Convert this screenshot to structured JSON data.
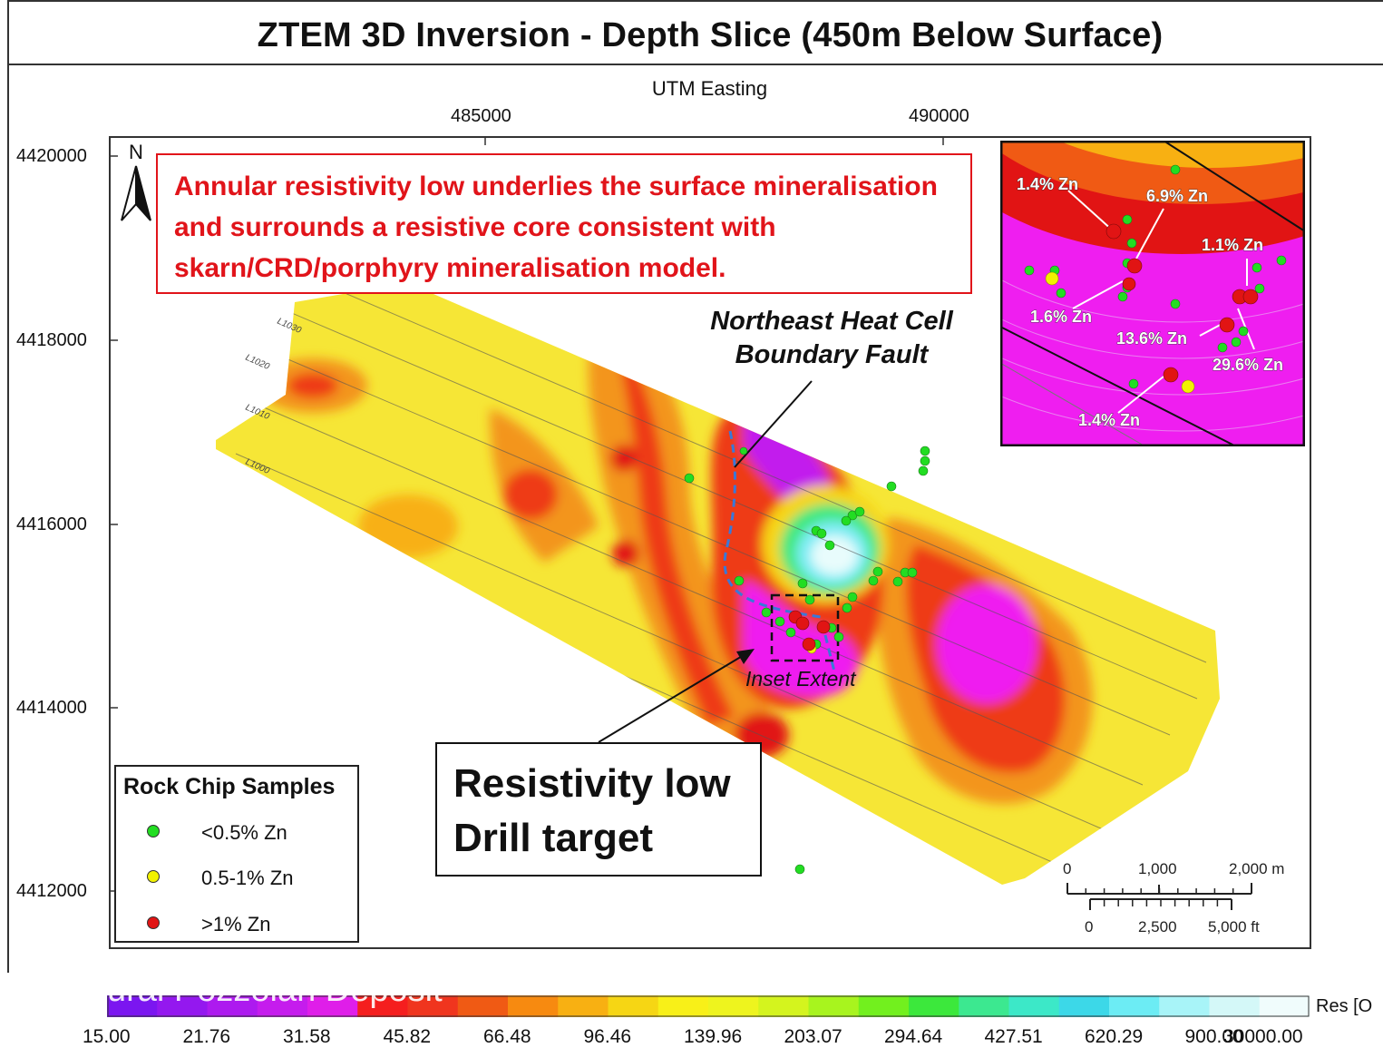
{
  "title": "ZTEM 3D Inversion - Depth Slice (450m Below Surface)",
  "axis": {
    "x_title": "UTM Easting",
    "x_ticks": [
      "485000",
      "490000"
    ],
    "y_ticks": [
      "4420000",
      "4418000",
      "4416000",
      "4414000",
      "4412000"
    ]
  },
  "north_label": "N",
  "callout": "Annular resistivity low underlies the surface mineralisation and surrounds a resistive core consistent with skarn/CRD/porphyry mineralisation model.",
  "fault_label": [
    "Northeast Heat Cell",
    "Boundary Fault"
  ],
  "inset_extent_label": "Inset Extent",
  "target": [
    "Resistivity low",
    "Drill target"
  ],
  "line_labels": [
    "L1030",
    "L1020",
    "L1010",
    "L1000"
  ],
  "legend": {
    "title": "Rock Chip Samples",
    "items": [
      {
        "label": "<0.5% Zn",
        "color": "#22dd22"
      },
      {
        "label": "0.5-1% Zn",
        "color": "#f2f200"
      },
      {
        "label": ">1% Zn",
        "color": "#e11414"
      }
    ]
  },
  "inset_labels": [
    "1.4% Zn",
    "6.9% Zn",
    "1.1% Zn",
    "1.6% Zn",
    "13.6% Zn",
    "29.6% Zn",
    "1.4% Zn"
  ],
  "scale_bar": {
    "metric": [
      "0",
      "1,000",
      "2,000 m"
    ],
    "imperial": [
      "0",
      "2,500",
      "5,000 ft"
    ]
  },
  "colorbar": {
    "partial_text": "ural Pozzolan Deposit",
    "unit_label": "Res [O",
    "labels": [
      "15.00",
      "21.76",
      "31.58",
      "45.82",
      "66.48",
      "96.46",
      "139.96",
      "203.07",
      "294.64",
      "427.51",
      "620.29",
      "900.00",
      "30000.00"
    ],
    "colors": [
      "#7b16f0",
      "#9418ef",
      "#ad1aef",
      "#c51ced",
      "#df1ee9",
      "#f51e1e",
      "#f0351e",
      "#f05a14",
      "#f78a10",
      "#f8b012",
      "#f6d614",
      "#f8f018",
      "#eef41e",
      "#d4f41e",
      "#a8f41e",
      "#72f01e",
      "#3ce83c",
      "#3ce890",
      "#3ce8c8",
      "#3cd8e8",
      "#6cecf4",
      "#a8f4f8",
      "#d4f8f8",
      "#f0fcfc"
    ]
  },
  "colors": {
    "callout_red": "#e1141a",
    "fault_blue": "#3a78d8"
  }
}
